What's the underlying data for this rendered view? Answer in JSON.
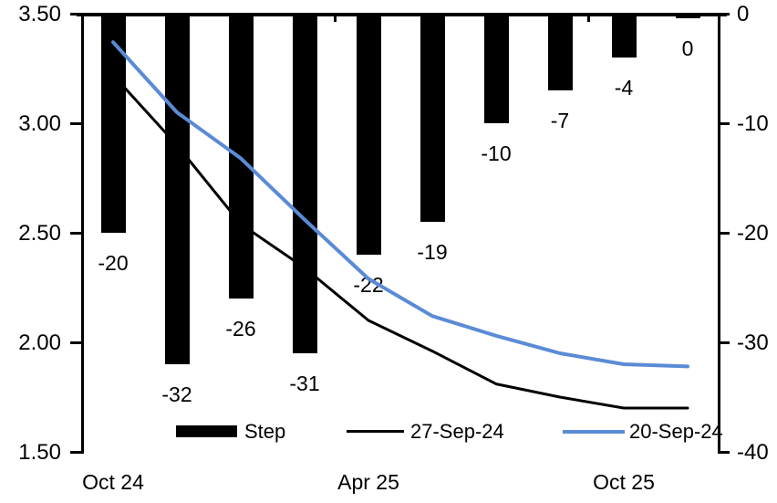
{
  "chart_data": {
    "type": "bar+line",
    "bar_series": {
      "name": "Step",
      "axis": "right",
      "color": "#000000",
      "values": [
        -20,
        -32,
        -26,
        -31,
        -22,
        -19,
        -10,
        -7,
        -4,
        0
      ],
      "labels": [
        "-20",
        "-32",
        "-26",
        "-31",
        "-22",
        "-19",
        "-10",
        "-7",
        "-4",
        "0"
      ]
    },
    "line_series": [
      {
        "name": "27-Sep-24",
        "axis": "left",
        "color": "#000000",
        "values": [
          3.22,
          2.9,
          2.54,
          2.34,
          2.1,
          1.96,
          1.81,
          1.75,
          1.7,
          1.7
        ]
      },
      {
        "name": "20-Sep-24",
        "axis": "left",
        "color": "#5B8BD5",
        "values": [
          3.37,
          3.05,
          2.84,
          2.56,
          2.29,
          2.12,
          2.03,
          1.95,
          1.9,
          1.89
        ]
      }
    ],
    "left_axis": {
      "min": 1.5,
      "max": 3.5,
      "ticks": [
        "3.50",
        "3.00",
        "2.50",
        "2.00",
        "1.50"
      ]
    },
    "right_axis": {
      "min": -40,
      "max": 0,
      "ticks": [
        "0",
        "-10",
        "-20",
        "-30",
        "-40"
      ]
    },
    "x_axis": {
      "labels": [
        {
          "text": "Oct 24",
          "category_index": 0
        },
        {
          "text": "Apr 25",
          "category_index": 4
        },
        {
          "text": "Oct 25",
          "category_index": 8
        }
      ]
    },
    "legend": {
      "items": [
        "Step",
        "27-Sep-24",
        "20-Sep-24"
      ]
    },
    "grid": "off",
    "legend_position": "bottom"
  }
}
